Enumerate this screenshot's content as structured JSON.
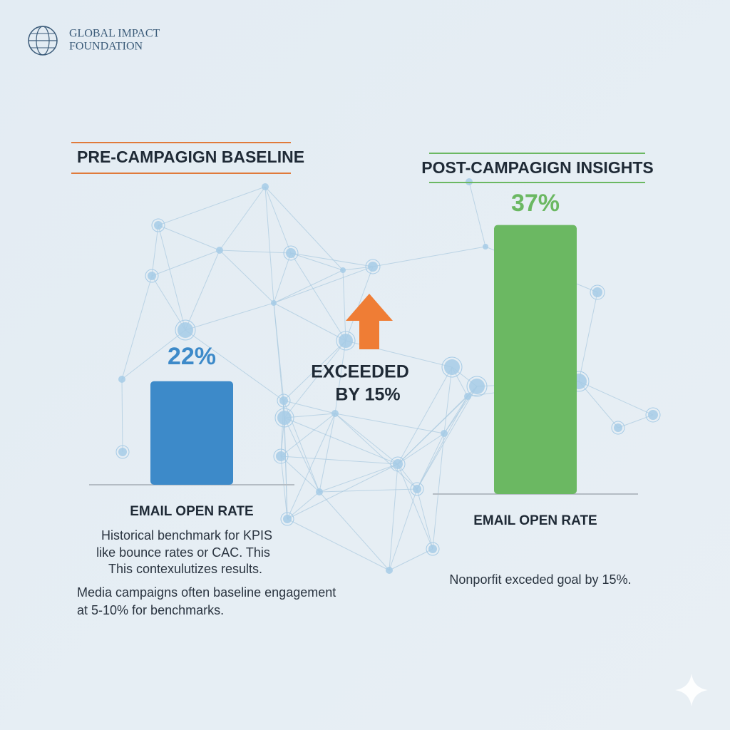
{
  "header": {
    "logo_lines": [
      "GLOBAL IMPACT",
      "FOUNDATION"
    ]
  },
  "chart_data": [
    {
      "type": "bar",
      "title": "PRE-CAMPAGIGN BASELINE",
      "categories": [
        "EMAIL OPEN RATE"
      ],
      "values": [
        22
      ],
      "value_labels": [
        "22%"
      ],
      "color": "#3d8ac9",
      "ylim": [
        0,
        40
      ]
    },
    {
      "type": "bar",
      "title": "POST-CAMPAGIGN INSIGHTS",
      "categories": [
        "EMAIL OPEN RATE"
      ],
      "values": [
        37
      ],
      "value_labels": [
        "37%"
      ],
      "color": "#6bb862",
      "ylim": [
        0,
        40
      ]
    }
  ],
  "annotation": {
    "lines": [
      "EXCEEDED",
      "BY 15%"
    ]
  },
  "left_notes": {
    "paragraph_1": [
      "Historical benchmark for KPIS",
      "like bounce rates or CAC. This",
      "This contexulutizes results."
    ],
    "paragraph_2": [
      "Media campaigns often baseline engagement",
      "at 5-10% for benchmarks."
    ]
  },
  "right_notes": {
    "lines": [
      "Nonporfit exceded goal by 15%."
    ]
  }
}
